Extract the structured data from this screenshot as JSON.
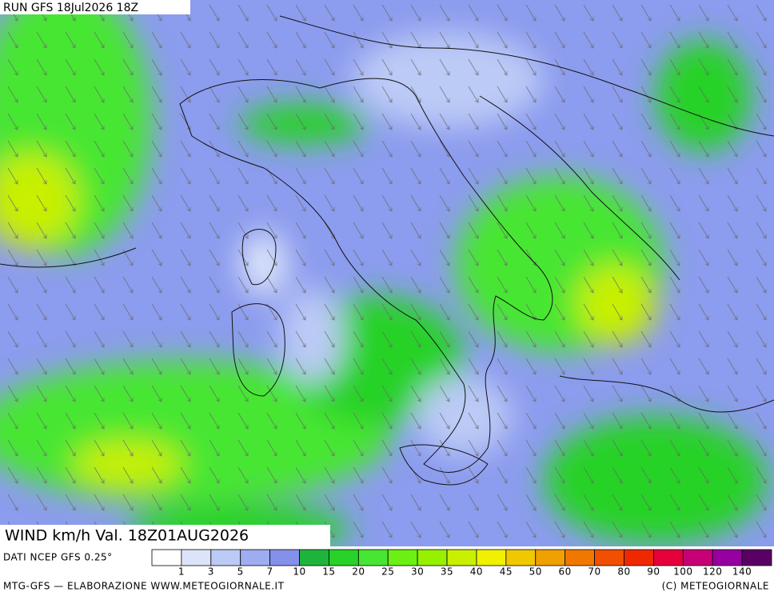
{
  "header": {
    "run": "RUN GFS 18Jul2026 18Z"
  },
  "title": "WIND km/h Val. 18Z01AUG2026",
  "source": "DATI NCEP GFS 0.25°",
  "footer": {
    "left": "MTG-GFS — ELABORAZIONE WWW.METEOGIORNALE.IT",
    "right": "(C) METEOGIORNALE"
  },
  "legend": {
    "colors": [
      "#ffffff",
      "#dce4fa",
      "#bccaf6",
      "#9eacf0",
      "#8490ea",
      "#1eb43c",
      "#28d228",
      "#46e632",
      "#6cf014",
      "#96f000",
      "#c8f000",
      "#f0f000",
      "#f0c800",
      "#f0a000",
      "#f07800",
      "#f05000",
      "#f02800",
      "#e6003c",
      "#c80078",
      "#9600a0",
      "#5a0064"
    ],
    "labels": [
      1,
      3,
      5,
      7,
      10,
      15,
      20,
      25,
      30,
      35,
      40,
      45,
      50,
      60,
      70,
      80,
      90,
      100,
      120,
      140
    ]
  }
}
